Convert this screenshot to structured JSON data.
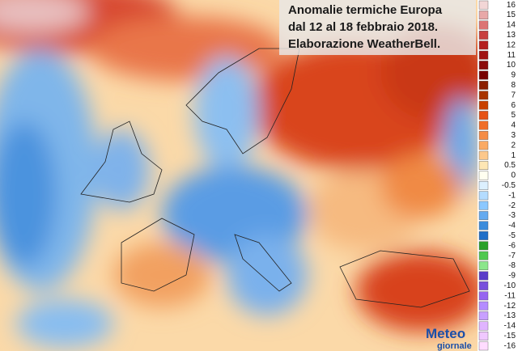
{
  "title": {
    "lines": [
      "Anomalie termiche Europa",
      "dal 12 al 18 febbraio 2018.",
      "Elaborazione WeatherBell."
    ]
  },
  "legend": {
    "labels": [
      "16",
      "15",
      "14",
      "13",
      "12",
      "11",
      "10",
      "9",
      "8",
      "7",
      "6",
      "5",
      "4",
      "3",
      "2",
      "1",
      "0.5",
      "0",
      "-0.5",
      "-1",
      "-2",
      "-3",
      "-4",
      "-5",
      "-6",
      "-7",
      "-8",
      "-9",
      "-10",
      "-11",
      "-12",
      "-13",
      "-14",
      "-15",
      "-16"
    ],
    "colors": [
      "#f2d6d6",
      "#e8a8a8",
      "#dc7474",
      "#c84040",
      "#b42020",
      "#a01414",
      "#8c0a0a",
      "#780000",
      "#8c1e00",
      "#a83400",
      "#c84000",
      "#e65214",
      "#f06e28",
      "#f58c46",
      "#faaa64",
      "#fcc88c",
      "#fde6b4",
      "#fffff0",
      "#dcf0ff",
      "#b4dcff",
      "#8cc8ff",
      "#64aaf0",
      "#3c8cdc",
      "#1e6ec8",
      "#28a028",
      "#50c850",
      "#8ce68c",
      "#5a3cc8",
      "#7850dc",
      "#9664f0",
      "#b48cff",
      "#c8a0ff",
      "#e0b4ff",
      "#f0c8ff",
      "#ffdcff"
    ]
  },
  "logo": {
    "line1": "Meteo",
    "line2": "giornale"
  }
}
